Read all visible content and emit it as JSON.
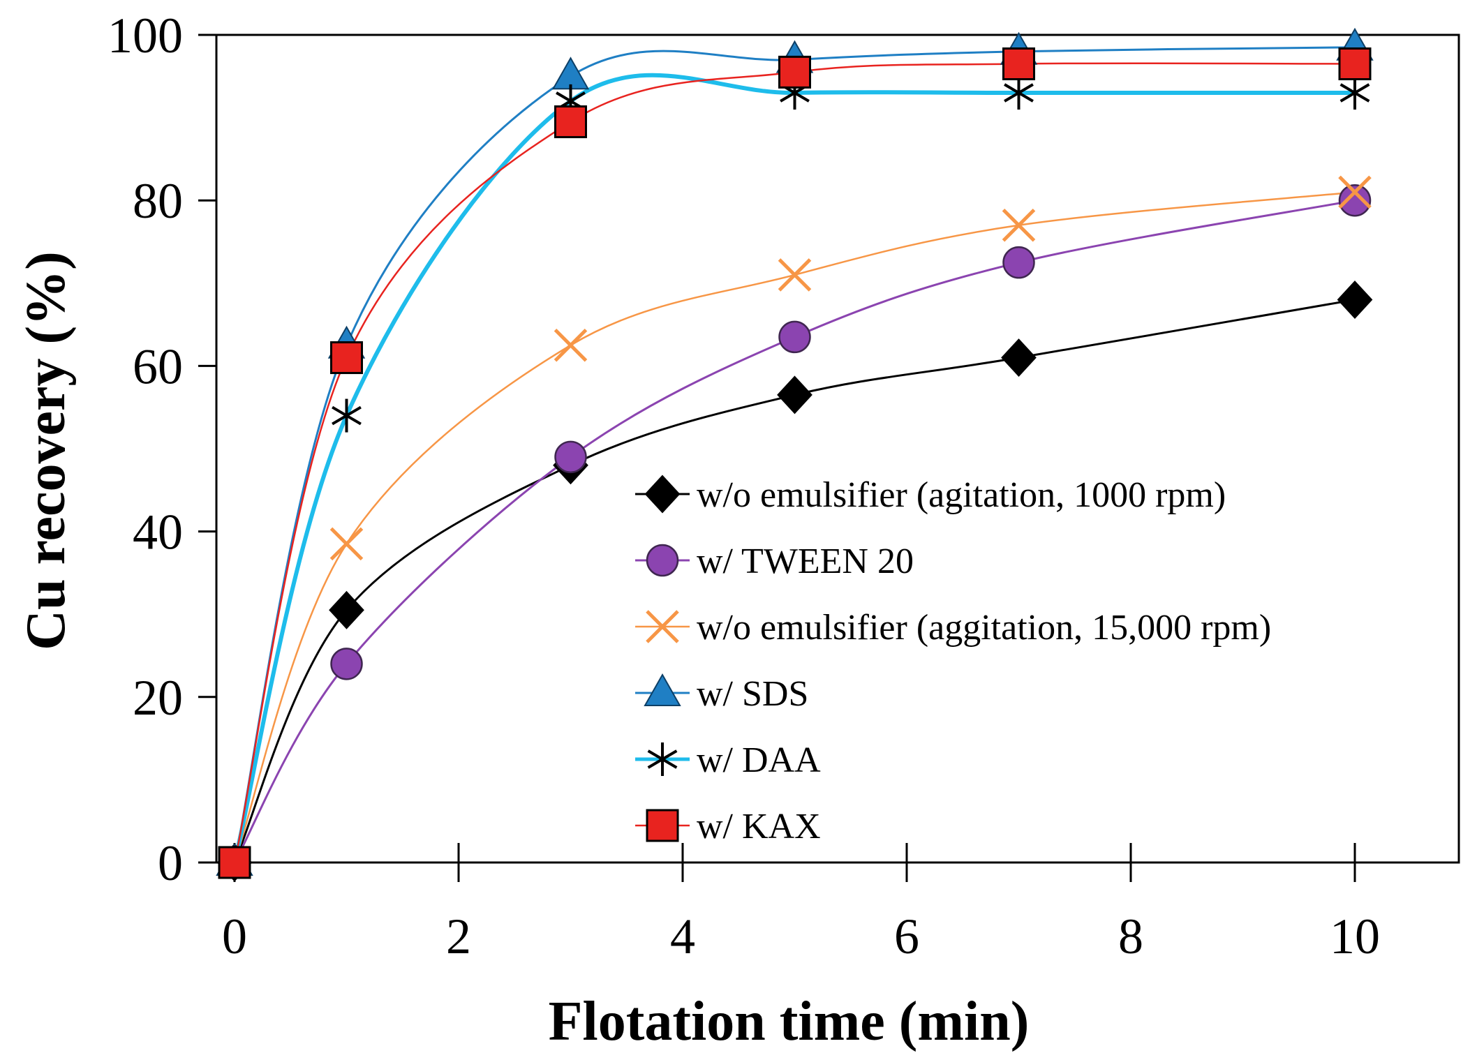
{
  "chart_data": {
    "type": "line",
    "title": "",
    "xlabel": "Flotation time (min)",
    "ylabel": "Cu recovery (%)",
    "xlim": [
      0,
      11
    ],
    "ylim": [
      0,
      100
    ],
    "xticks": [
      0,
      2,
      4,
      6,
      8,
      10
    ],
    "yticks": [
      0,
      20,
      40,
      60,
      80,
      100
    ],
    "grid": false,
    "legend_position": "bottom-right",
    "x": [
      0,
      1,
      3,
      5,
      7,
      10
    ],
    "series": [
      {
        "name": "w/o emulsifier (agitation, 1000 rpm)",
        "values": [
          0,
          30.5,
          48,
          56.5,
          61,
          68
        ],
        "color": "#000000",
        "marker": "diamond",
        "line_width": 3
      },
      {
        "name": "w/ TWEEN 20",
        "values": [
          0,
          24,
          49,
          63.5,
          72.5,
          80
        ],
        "color": "#8B44B0",
        "marker": "circle",
        "line_width": 3
      },
      {
        "name": "w/o emulsifier (aggitation, 15,000 rpm)",
        "values": [
          0,
          38.5,
          62.5,
          71,
          77,
          81
        ],
        "color": "#F79646",
        "marker": "x",
        "line_width": 2.5
      },
      {
        "name": "w/ SDS",
        "values": [
          0,
          62.5,
          95,
          97,
          98,
          98.5
        ],
        "color": "#1F7FC4",
        "marker": "triangle",
        "line_width": 3
      },
      {
        "name": "w/ DAA",
        "values": [
          0,
          54,
          92,
          93,
          93,
          93
        ],
        "color": "#1EBCEB",
        "marker": "asterisk",
        "line_width": 6
      },
      {
        "name": "w/ KAX",
        "values": [
          0,
          61,
          89.5,
          95.5,
          96.5,
          96.5
        ],
        "color": "#E8231F",
        "marker": "square",
        "line_width": 2.5
      }
    ]
  }
}
